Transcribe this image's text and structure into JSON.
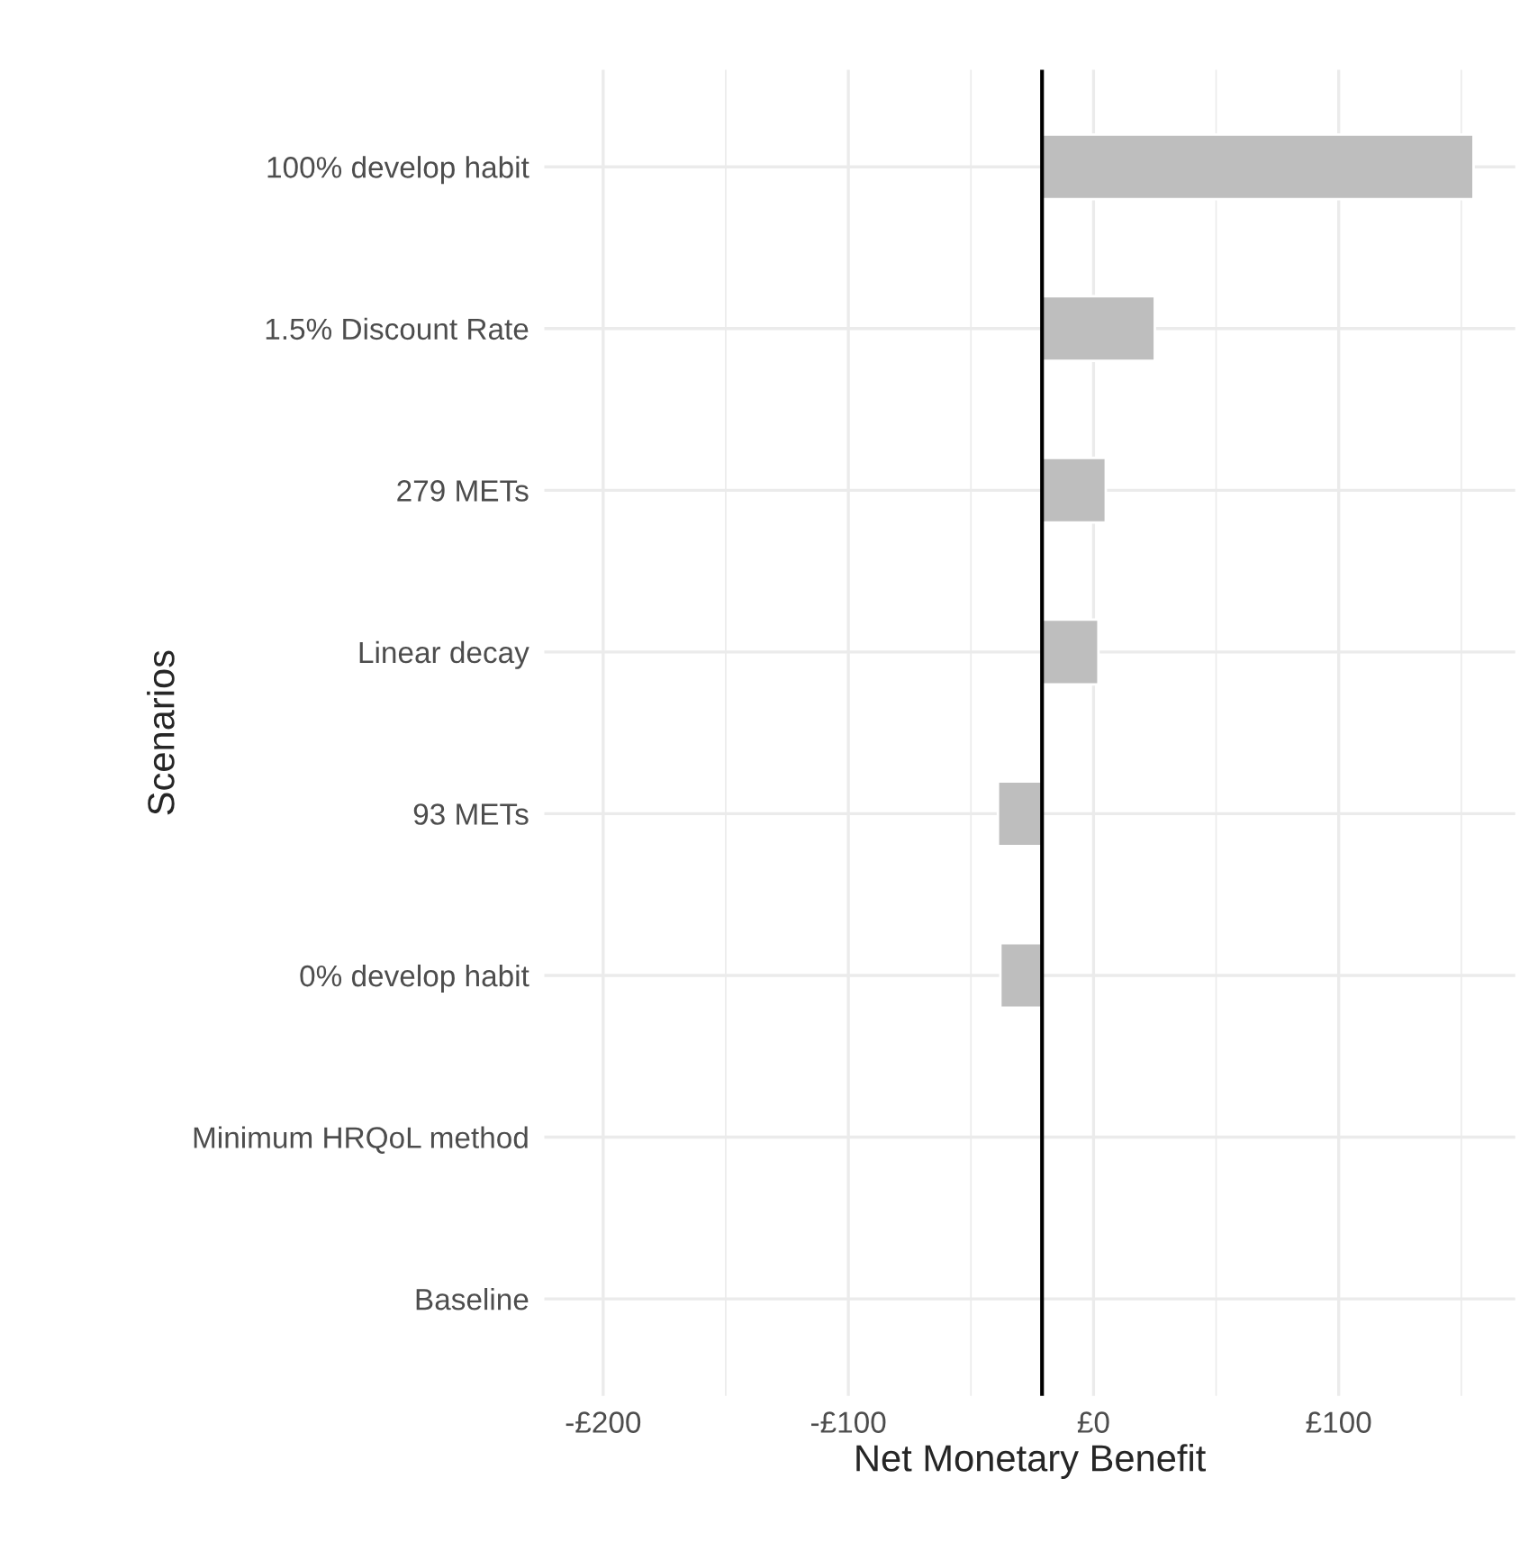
{
  "chart_data": {
    "type": "bar",
    "orientation": "horizontal",
    "xlabel": "Net Monetary Benefit",
    "ylabel": "Scenarios",
    "categories": [
      "100% develop habit",
      "1.5% Discount Rate",
      "279 METs",
      "Linear decay",
      "93 METs",
      "0% develop habit",
      "Minimum HRQoL method",
      "Baseline"
    ],
    "values": [
      176,
      46,
      26,
      23,
      -18,
      -17,
      null,
      null
    ],
    "base": [
      -21,
      -21,
      -21,
      -21,
      -21,
      -21,
      null,
      null
    ],
    "color": "#bebebe",
    "xlim": [
      -224,
      172
    ],
    "xticks": [
      {
        "value": -200,
        "label": "-£200"
      },
      {
        "value": -150,
        "label": null
      },
      {
        "value": -100,
        "label": "-£100"
      },
      {
        "value": -50,
        "label": null
      },
      {
        "value": 0,
        "label": "£0"
      },
      {
        "value": 50,
        "label": null
      },
      {
        "value": 100,
        "label": "£100"
      },
      {
        "value": 150,
        "label": null
      }
    ],
    "ref_lines": [
      {
        "axis": "x",
        "value": -21,
        "label": null,
        "color": "#000000"
      }
    ],
    "grid": true,
    "legend": false
  }
}
